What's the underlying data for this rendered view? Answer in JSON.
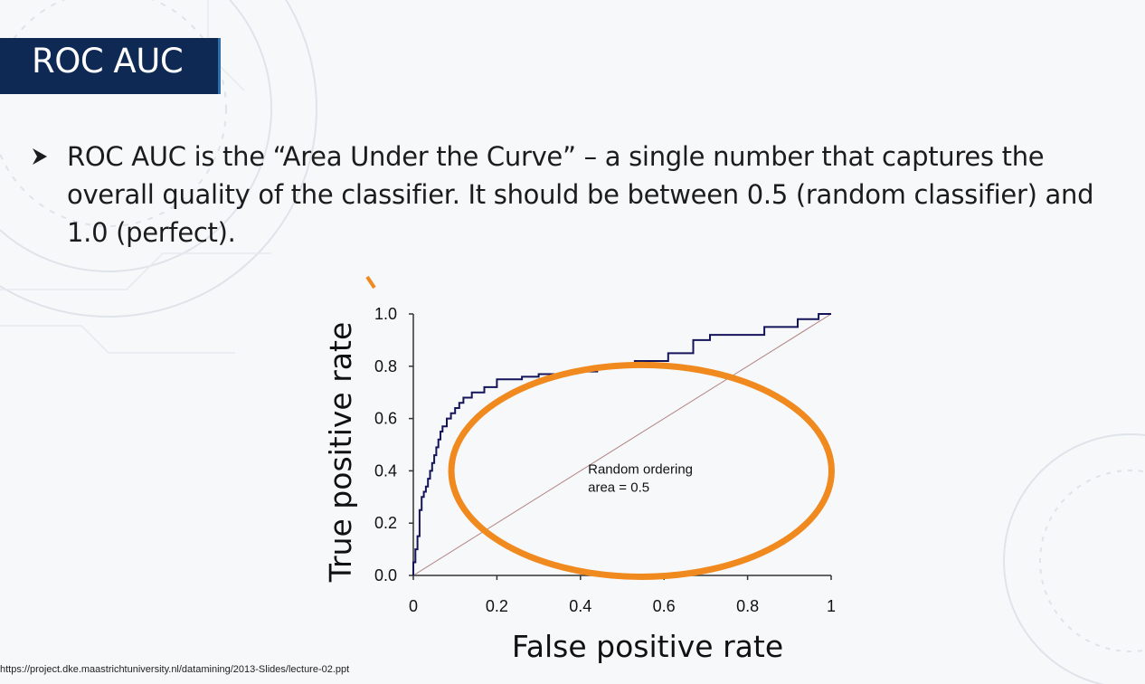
{
  "slide": {
    "title": "ROC AUC",
    "bullet": "ROC AUC is the “Area Under the Curve” – a single number that captures the overall quality of the classifier. It should be between 0.5 (random classifier) and 1.0 (perfect).",
    "source": "https://project.dke.maastrichtuniversity.nl/datamining/2013-Slides/lecture-02.ppt",
    "colors": {
      "title_bg": "#0e2a54",
      "curve": "#14145a",
      "diagonal": "#b08080",
      "highlight": "#f0891e"
    }
  },
  "chart_data": {
    "type": "line",
    "xlabel": "False positive rate",
    "ylabel": "True positive rate",
    "xlim": [
      0,
      1
    ],
    "ylim": [
      0,
      1
    ],
    "x_ticks": [
      "0",
      "0.2",
      "0.4",
      "0.6",
      "0.8",
      "1"
    ],
    "y_ticks": [
      "0.0",
      "0.2",
      "0.4",
      "0.6",
      "0.8",
      "1.0"
    ],
    "annotation": [
      "Random ordering",
      "area = 0.5"
    ],
    "series": [
      {
        "role": "roc-curve",
        "points": [
          [
            0,
            0
          ],
          [
            0,
            0.05
          ],
          [
            0.005,
            0.05
          ],
          [
            0.005,
            0.1
          ],
          [
            0.01,
            0.1
          ],
          [
            0.01,
            0.15
          ],
          [
            0.015,
            0.15
          ],
          [
            0.015,
            0.25
          ],
          [
            0.02,
            0.25
          ],
          [
            0.02,
            0.3
          ],
          [
            0.025,
            0.3
          ],
          [
            0.025,
            0.32
          ],
          [
            0.03,
            0.32
          ],
          [
            0.03,
            0.34
          ],
          [
            0.035,
            0.34
          ],
          [
            0.035,
            0.37
          ],
          [
            0.04,
            0.37
          ],
          [
            0.04,
            0.4
          ],
          [
            0.045,
            0.4
          ],
          [
            0.045,
            0.43
          ],
          [
            0.05,
            0.43
          ],
          [
            0.05,
            0.46
          ],
          [
            0.055,
            0.46
          ],
          [
            0.055,
            0.49
          ],
          [
            0.06,
            0.49
          ],
          [
            0.06,
            0.52
          ],
          [
            0.065,
            0.52
          ],
          [
            0.065,
            0.55
          ],
          [
            0.07,
            0.55
          ],
          [
            0.07,
            0.57
          ],
          [
            0.08,
            0.57
          ],
          [
            0.08,
            0.6
          ],
          [
            0.09,
            0.6
          ],
          [
            0.09,
            0.62
          ],
          [
            0.1,
            0.62
          ],
          [
            0.1,
            0.64
          ],
          [
            0.11,
            0.64
          ],
          [
            0.11,
            0.66
          ],
          [
            0.12,
            0.66
          ],
          [
            0.12,
            0.68
          ],
          [
            0.14,
            0.68
          ],
          [
            0.14,
            0.7
          ],
          [
            0.17,
            0.7
          ],
          [
            0.17,
            0.72
          ],
          [
            0.2,
            0.72
          ],
          [
            0.2,
            0.75
          ],
          [
            0.26,
            0.75
          ],
          [
            0.26,
            0.76
          ],
          [
            0.3,
            0.76
          ],
          [
            0.3,
            0.77
          ],
          [
            0.37,
            0.77
          ],
          [
            0.37,
            0.78
          ],
          [
            0.44,
            0.78
          ],
          [
            0.44,
            0.8
          ],
          [
            0.53,
            0.8
          ],
          [
            0.53,
            0.82
          ],
          [
            0.61,
            0.82
          ],
          [
            0.61,
            0.85
          ],
          [
            0.67,
            0.85
          ],
          [
            0.67,
            0.9
          ],
          [
            0.71,
            0.9
          ],
          [
            0.71,
            0.92
          ],
          [
            0.84,
            0.92
          ],
          [
            0.84,
            0.95
          ],
          [
            0.92,
            0.95
          ],
          [
            0.92,
            0.98
          ],
          [
            0.97,
            0.98
          ],
          [
            0.97,
            1
          ],
          [
            1,
            1
          ]
        ]
      },
      {
        "role": "random-diagonal",
        "points": [
          [
            0,
            0
          ],
          [
            1,
            1
          ]
        ]
      }
    ],
    "highlight_ellipse": {
      "cx": 0.546,
      "cy": 0.4,
      "rx": 0.455,
      "ry": 0.405
    }
  }
}
